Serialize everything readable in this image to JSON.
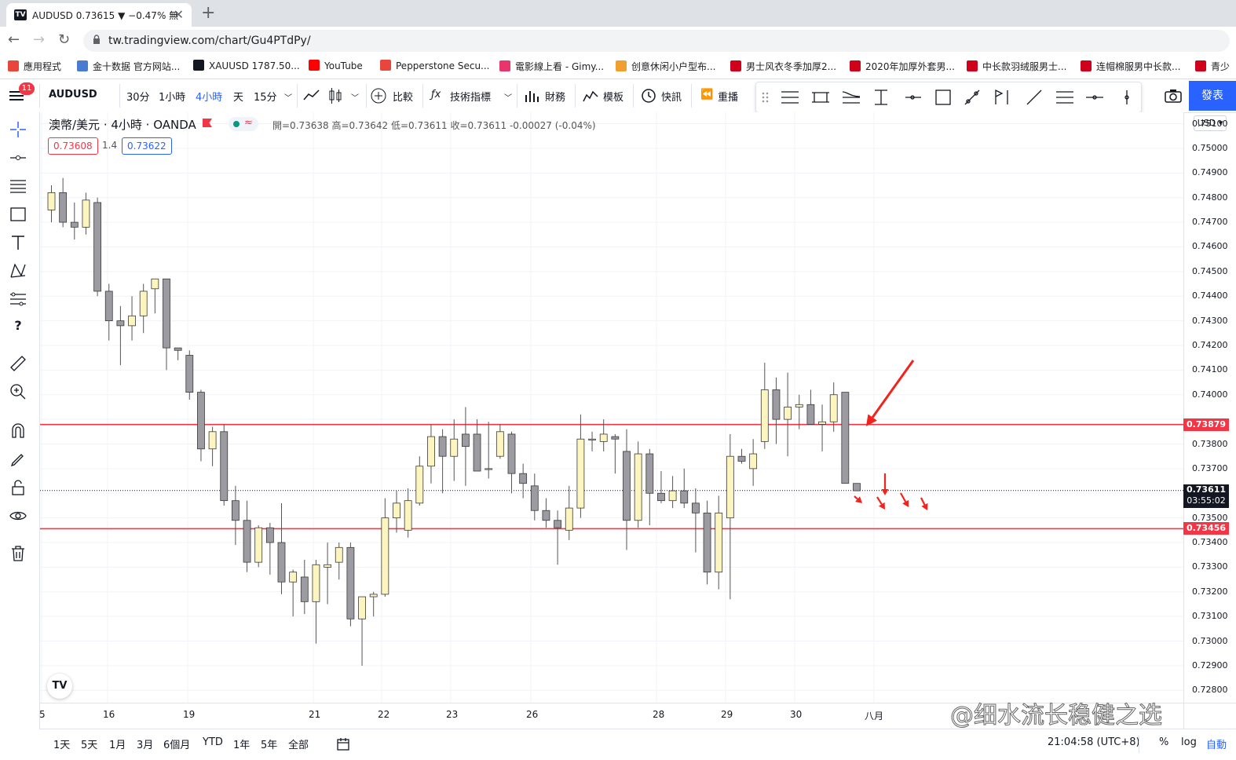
{
  "browser": {
    "tab_title": "AUDUSD 0.73615 ▼ −0.47% 無",
    "url": "tw.tradingview.com/chart/Gu4PTdPy/",
    "bookmarks": [
      {
        "label": "應用程式",
        "color": "#e8453c"
      },
      {
        "label": "金十数据 官方网站...",
        "color": "#4a7bd0"
      },
      {
        "label": "XAUUSD 1787.50...",
        "color": "#131722"
      },
      {
        "label": "YouTube",
        "color": "#ff0000"
      },
      {
        "label": "Pepperstone Secu...",
        "color": "#e8453c"
      },
      {
        "label": "電影線上看 - Gimy...",
        "color": "#e8356b"
      },
      {
        "label": "创意休闲小户型布...",
        "color": "#f0a030"
      },
      {
        "label": "男士风衣冬季加厚2...",
        "color": "#d0021b"
      },
      {
        "label": "2020年加厚外套男...",
        "color": "#d0021b"
      },
      {
        "label": "中长款羽绒服男士...",
        "color": "#d0021b"
      },
      {
        "label": "连帽棉服男中长款...",
        "color": "#d0021b"
      },
      {
        "label": "青少",
        "color": "#d0021b"
      }
    ]
  },
  "toolbar": {
    "badge": "11",
    "symbol": "AUDUSD",
    "intervals": [
      "30分",
      "1小時",
      "4小時",
      "天",
      "15分"
    ],
    "active_interval": "4小時",
    "compare": "比較",
    "indicators": "技術指標",
    "financials": "財務",
    "templates": "模板",
    "alert": "快訊",
    "replay": "重播",
    "publish": "發表"
  },
  "legend": {
    "title": "澳幣/美元 · 4小時 · OANDA",
    "ohlc": "開=0.73638 高=0.73642 低=0.73611 收=0.73611 -0.00027 (-0.04%)",
    "bid": "0.73608",
    "spread": "1.4",
    "ask": "0.73622"
  },
  "price_axis": {
    "currency": "USD",
    "ticks": [
      "0.75100",
      "0.75000",
      "0.74900",
      "0.74800",
      "0.74700",
      "0.74600",
      "0.74500",
      "0.74400",
      "0.74300",
      "0.74200",
      "0.74100",
      "0.74000",
      "0.73900",
      "0.73800",
      "0.73700",
      "0.73600",
      "0.73500",
      "0.73400",
      "0.73300",
      "0.73200",
      "0.73100",
      "0.73000",
      "0.72900",
      "0.72800"
    ],
    "line_labels": [
      {
        "label": "0.73879",
        "color": "#f23645"
      },
      {
        "label": "0.73456",
        "color": "#f23645"
      }
    ],
    "last_price": "0.73611",
    "countdown": "03:55:02"
  },
  "time_axis": {
    "labels": [
      "5",
      "16",
      "19",
      "21",
      "22",
      "23",
      "26",
      "28",
      "29",
      "30",
      "八月"
    ]
  },
  "bottom": {
    "ranges": [
      "1天",
      "5天",
      "1月",
      "3月",
      "6個月",
      "YTD",
      "1年",
      "5年",
      "全部"
    ],
    "clock": "21:04:58 (UTC+8)",
    "percent": "%",
    "log": "log",
    "auto": "自動"
  },
  "watermark": "@细水流长稳健之选",
  "chart_data": {
    "type": "candlestick",
    "symbol": "AUDUSD",
    "timeframe": "4小時",
    "ylim": [
      0.7275,
      0.7514
    ],
    "horizontal_lines": [
      0.73879,
      0.73456
    ],
    "last_price": 0.73611,
    "candles": [
      {
        "o": 0.7475,
        "h": 0.7485,
        "l": 0.747,
        "c": 0.7482
      },
      {
        "o": 0.7482,
        "h": 0.7488,
        "l": 0.7468,
        "c": 0.747
      },
      {
        "o": 0.747,
        "h": 0.7478,
        "l": 0.7463,
        "c": 0.7468
      },
      {
        "o": 0.7468,
        "h": 0.7482,
        "l": 0.7465,
        "c": 0.7479
      },
      {
        "o": 0.7478,
        "h": 0.748,
        "l": 0.744,
        "c": 0.7442
      },
      {
        "o": 0.7442,
        "h": 0.7445,
        "l": 0.7422,
        "c": 0.743
      },
      {
        "o": 0.743,
        "h": 0.7436,
        "l": 0.7412,
        "c": 0.7428
      },
      {
        "o": 0.7428,
        "h": 0.744,
        "l": 0.7422,
        "c": 0.7432
      },
      {
        "o": 0.7432,
        "h": 0.7445,
        "l": 0.7425,
        "c": 0.7442
      },
      {
        "o": 0.7443,
        "h": 0.7447,
        "l": 0.7433,
        "c": 0.7447
      },
      {
        "o": 0.7447,
        "h": 0.7446,
        "l": 0.741,
        "c": 0.7419
      },
      {
        "o": 0.7419,
        "h": 0.7419,
        "l": 0.7414,
        "c": 0.7418
      },
      {
        "o": 0.7416,
        "h": 0.7418,
        "l": 0.7398,
        "c": 0.7401
      },
      {
        "o": 0.7401,
        "h": 0.7402,
        "l": 0.7373,
        "c": 0.7378
      },
      {
        "o": 0.7378,
        "h": 0.7387,
        "l": 0.7371,
        "c": 0.7385
      },
      {
        "o": 0.7385,
        "h": 0.7388,
        "l": 0.7355,
        "c": 0.7357
      },
      {
        "o": 0.7357,
        "h": 0.7363,
        "l": 0.7339,
        "c": 0.7349
      },
      {
        "o": 0.7349,
        "h": 0.7357,
        "l": 0.7328,
        "c": 0.7332
      },
      {
        "o": 0.7332,
        "h": 0.7347,
        "l": 0.733,
        "c": 0.7346
      },
      {
        "o": 0.7346,
        "h": 0.7348,
        "l": 0.7327,
        "c": 0.734
      },
      {
        "o": 0.734,
        "h": 0.7356,
        "l": 0.7319,
        "c": 0.7324
      },
      {
        "o": 0.7324,
        "h": 0.7329,
        "l": 0.731,
        "c": 0.7328
      },
      {
        "o": 0.7326,
        "h": 0.7333,
        "l": 0.7311,
        "c": 0.7316
      },
      {
        "o": 0.7316,
        "h": 0.7333,
        "l": 0.7299,
        "c": 0.7331
      },
      {
        "o": 0.733,
        "h": 0.734,
        "l": 0.7315,
        "c": 0.7331
      },
      {
        "o": 0.7332,
        "h": 0.734,
        "l": 0.7325,
        "c": 0.7338
      },
      {
        "o": 0.7338,
        "h": 0.734,
        "l": 0.7306,
        "c": 0.7309
      },
      {
        "o": 0.7309,
        "h": 0.7316,
        "l": 0.729,
        "c": 0.7318
      },
      {
        "o": 0.7318,
        "h": 0.732,
        "l": 0.731,
        "c": 0.7319
      },
      {
        "o": 0.7319,
        "h": 0.7358,
        "l": 0.7318,
        "c": 0.735
      },
      {
        "o": 0.735,
        "h": 0.7361,
        "l": 0.7344,
        "c": 0.7356
      },
      {
        "o": 0.7345,
        "h": 0.7362,
        "l": 0.7342,
        "c": 0.7357
      },
      {
        "o": 0.7356,
        "h": 0.7375,
        "l": 0.7355,
        "c": 0.7371
      },
      {
        "o": 0.7371,
        "h": 0.7388,
        "l": 0.7364,
        "c": 0.7383
      },
      {
        "o": 0.7383,
        "h": 0.7386,
        "l": 0.736,
        "c": 0.7375
      },
      {
        "o": 0.7375,
        "h": 0.739,
        "l": 0.7365,
        "c": 0.7382
      },
      {
        "o": 0.7384,
        "h": 0.7395,
        "l": 0.7363,
        "c": 0.7379
      },
      {
        "o": 0.7384,
        "h": 0.739,
        "l": 0.737,
        "c": 0.7369
      },
      {
        "o": 0.737,
        "h": 0.7389,
        "l": 0.7366,
        "c": 0.737
      },
      {
        "o": 0.7375,
        "h": 0.7388,
        "l": 0.7374,
        "c": 0.7385
      },
      {
        "o": 0.7384,
        "h": 0.7385,
        "l": 0.736,
        "c": 0.7368
      },
      {
        "o": 0.7368,
        "h": 0.7372,
        "l": 0.7358,
        "c": 0.7364
      },
      {
        "o": 0.7363,
        "h": 0.7368,
        "l": 0.7349,
        "c": 0.7353
      },
      {
        "o": 0.7353,
        "h": 0.7358,
        "l": 0.7346,
        "c": 0.7349
      },
      {
        "o": 0.7349,
        "h": 0.7353,
        "l": 0.7331,
        "c": 0.7346
      },
      {
        "o": 0.7345,
        "h": 0.7363,
        "l": 0.7341,
        "c": 0.7354
      },
      {
        "o": 0.7354,
        "h": 0.7392,
        "l": 0.735,
        "c": 0.7382
      },
      {
        "o": 0.7382,
        "h": 0.7385,
        "l": 0.7377,
        "c": 0.7382
      },
      {
        "o": 0.7381,
        "h": 0.739,
        "l": 0.7377,
        "c": 0.7384
      },
      {
        "o": 0.7383,
        "h": 0.7384,
        "l": 0.7368,
        "c": 0.7382
      },
      {
        "o": 0.7377,
        "h": 0.7386,
        "l": 0.7337,
        "c": 0.7349
      },
      {
        "o": 0.7349,
        "h": 0.7381,
        "l": 0.7346,
        "c": 0.7376
      },
      {
        "o": 0.7376,
        "h": 0.7378,
        "l": 0.7347,
        "c": 0.736
      },
      {
        "o": 0.736,
        "h": 0.7369,
        "l": 0.7356,
        "c": 0.7357
      },
      {
        "o": 0.7357,
        "h": 0.7367,
        "l": 0.7354,
        "c": 0.7361
      },
      {
        "o": 0.7361,
        "h": 0.737,
        "l": 0.7354,
        "c": 0.7356
      },
      {
        "o": 0.7356,
        "h": 0.7362,
        "l": 0.7336,
        "c": 0.7352
      },
      {
        "o": 0.7352,
        "h": 0.7357,
        "l": 0.7323,
        "c": 0.7328
      },
      {
        "o": 0.7328,
        "h": 0.7359,
        "l": 0.7321,
        "c": 0.7352
      },
      {
        "o": 0.735,
        "h": 0.7384,
        "l": 0.7317,
        "c": 0.7375
      },
      {
        "o": 0.7375,
        "h": 0.7378,
        "l": 0.7372,
        "c": 0.7373
      },
      {
        "o": 0.737,
        "h": 0.7382,
        "l": 0.7363,
        "c": 0.7376
      },
      {
        "o": 0.7381,
        "h": 0.7413,
        "l": 0.7378,
        "c": 0.7402
      },
      {
        "o": 0.7402,
        "h": 0.7407,
        "l": 0.738,
        "c": 0.739
      },
      {
        "o": 0.739,
        "h": 0.7409,
        "l": 0.7375,
        "c": 0.7395
      },
      {
        "o": 0.7395,
        "h": 0.74,
        "l": 0.7386,
        "c": 0.7396
      },
      {
        "o": 0.7396,
        "h": 0.7402,
        "l": 0.7388,
        "c": 0.7388
      },
      {
        "o": 0.7388,
        "h": 0.7396,
        "l": 0.7377,
        "c": 0.7389
      },
      {
        "o": 0.7389,
        "h": 0.7405,
        "l": 0.7385,
        "c": 0.74
      },
      {
        "o": 0.7401,
        "h": 0.7401,
        "l": 0.7365,
        "c": 0.7364
      },
      {
        "o": 0.7364,
        "h": 0.7364,
        "l": 0.7361,
        "c": 0.7361
      }
    ]
  }
}
